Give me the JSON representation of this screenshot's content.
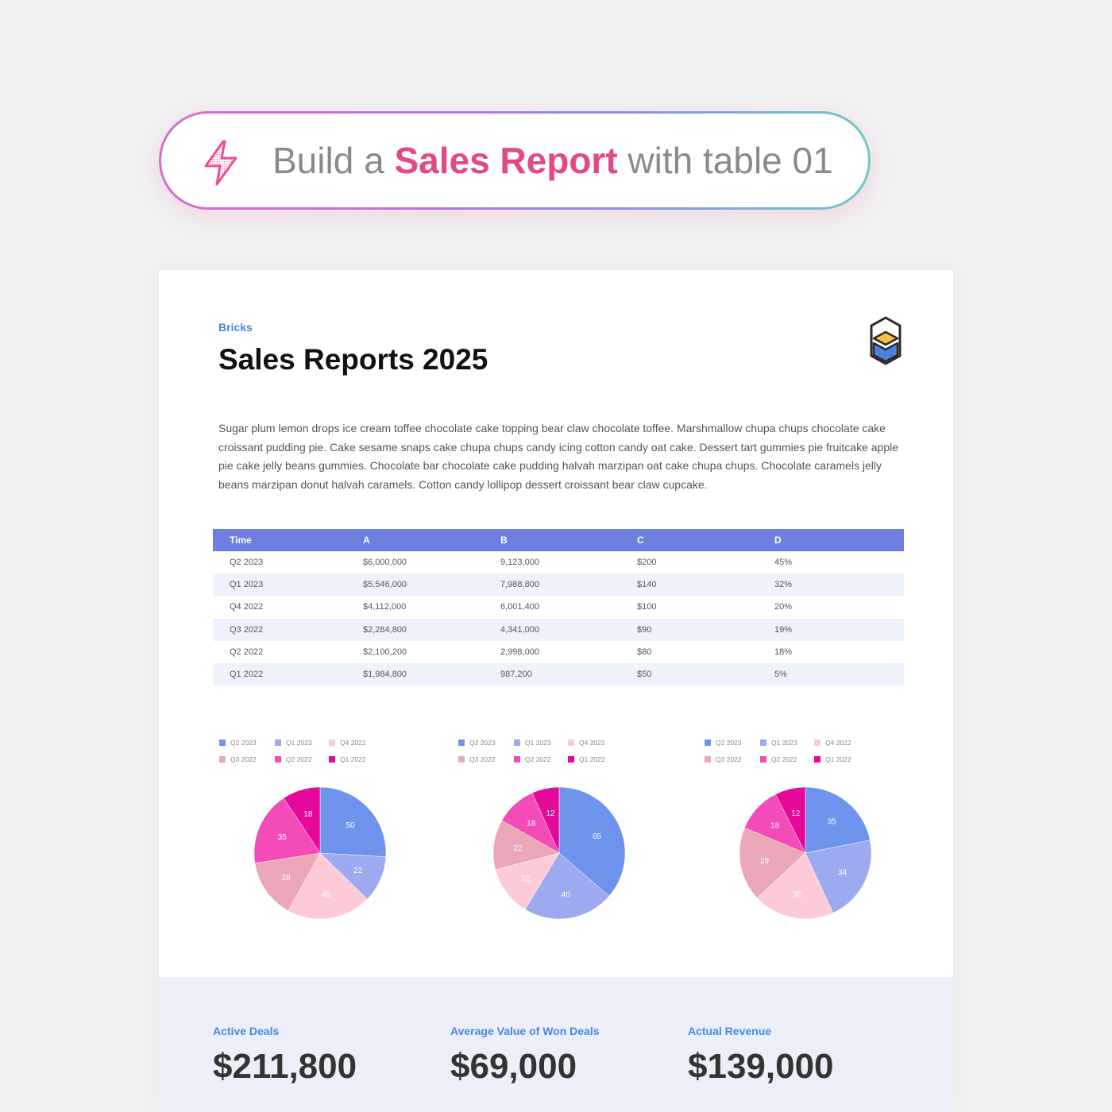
{
  "prompt": {
    "prefix": "Build a ",
    "highlight": "Sales Report",
    "suffix": " with table 01"
  },
  "report": {
    "brand": "Bricks",
    "title": "Sales Reports 2025",
    "description": "Sugar plum lemon drops ice cream toffee chocolate cake topping bear claw chocolate toffee. Marshmallow chupa chups chocolate cake croissant pudding pie. Cake sesame snaps cake chupa chups candy icing cotton candy oat cake. Dessert tart gummies pie fruitcake apple pie cake jelly beans gummies. Chocolate bar chocolate cake pudding halvah marzipan oat cake chupa chups. Chocolate caramels jelly beans marzipan donut halvah caramels. Cotton candy lollipop dessert croissant bear claw cupcake."
  },
  "table": {
    "headers": [
      "Time",
      "A",
      "B",
      "C",
      "D"
    ],
    "rows": [
      [
        "Q2 2023",
        "$6,000,000",
        "9,123,000",
        "$200",
        "45%"
      ],
      [
        "Q1 2023",
        "$5,546,000",
        "7,988,800",
        "$140",
        "32%"
      ],
      [
        "Q4 2022",
        "$4,112,000",
        "6,001,400",
        "$100",
        "20%"
      ],
      [
        "Q3 2022",
        "$2,284,800",
        "4,341,000",
        "$90",
        "19%"
      ],
      [
        "Q2 2022",
        "$2,100,200",
        "2,998,000",
        "$80",
        "18%"
      ],
      [
        "Q1 2022",
        "$1,984,800",
        "987,200",
        "$50",
        "5%"
      ]
    ]
  },
  "colors": {
    "slices": [
      "#6e93ec",
      "#9eaaef",
      "#fdcbd8",
      "#eba6b8",
      "#f34bb8",
      "#e6079b"
    ],
    "accent": "#e04a86",
    "header": "#6f7fe0",
    "brand": "#4a86e0"
  },
  "chart_data": [
    {
      "type": "pie",
      "categories": [
        "Q2 2023",
        "Q1 2023",
        "Q4 2022",
        "Q3 2022",
        "Q2 2022",
        "Q1 2022"
      ],
      "values": [
        50,
        22,
        40,
        28,
        35,
        18
      ]
    },
    {
      "type": "pie",
      "categories": [
        "Q2 2023",
        "Q1 2023",
        "Q4 2022",
        "Q3 2022",
        "Q2 2022",
        "Q1 2022"
      ],
      "values": [
        65,
        40,
        22,
        22,
        18,
        12
      ]
    },
    {
      "type": "pie",
      "categories": [
        "Q2 2023",
        "Q1 2023",
        "Q4 2022",
        "Q3 2022",
        "Q2 2022",
        "Q1 2022"
      ],
      "values": [
        35,
        34,
        32,
        29,
        18,
        12
      ]
    }
  ],
  "stats": [
    {
      "label": "Active Deals",
      "value": "$211,800"
    },
    {
      "label": "Average Value of Won Deals",
      "value": "$69,000"
    },
    {
      "label": "Actual Revenue",
      "value": "$139,000"
    }
  ]
}
